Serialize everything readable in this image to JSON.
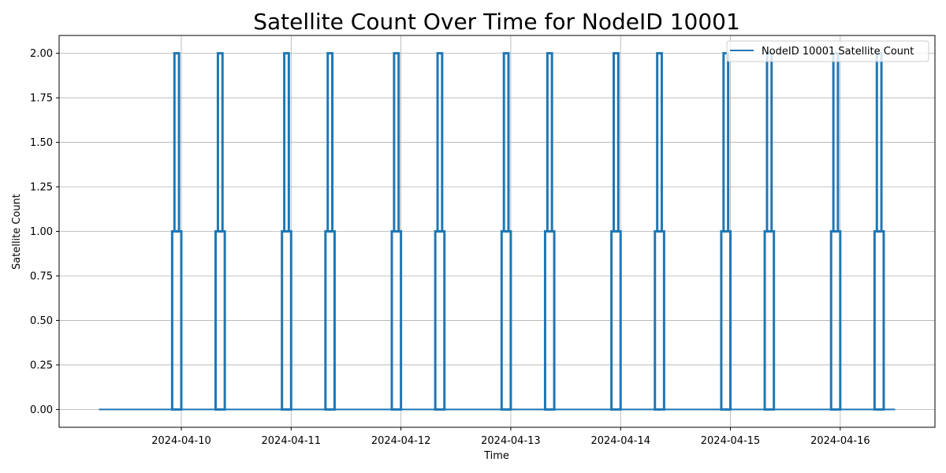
{
  "chart_data": {
    "type": "line",
    "title": "Satellite Count Over Time for NodeID 10001",
    "xlabel": "Time",
    "ylabel": "Satellite Count",
    "x_range": [
      "2024-04-09 06:00",
      "2024-04-16 12:00"
    ],
    "ylim": [
      -0.1,
      2.1
    ],
    "y_ticks": [
      "0.00",
      "0.25",
      "0.50",
      "0.75",
      "1.00",
      "1.25",
      "1.50",
      "1.75",
      "2.00"
    ],
    "x_ticks": [
      "2024-04-10",
      "2024-04-11",
      "2024-04-12",
      "2024-04-13",
      "2024-04-14",
      "2024-04-15",
      "2024-04-16"
    ],
    "grid": true,
    "legend_position": "top-right",
    "series": [
      {
        "name": "NodeID 10001 Satellite Count",
        "color": "#1f77b4",
        "step_start": "2024-04-09 06:00",
        "step_end": "2024-04-16 12:00",
        "baseline_value": 0,
        "passes": [
          [
            "2024-04-09 22:00",
            "2024-04-09 22:30",
            "2024-04-09 23:30",
            "2024-04-10 00:00"
          ],
          [
            "2024-04-10 07:30",
            "2024-04-10 08:00",
            "2024-04-10 09:00",
            "2024-04-10 09:30"
          ],
          [
            "2024-04-10 22:00",
            "2024-04-10 22:30",
            "2024-04-10 23:30",
            "2024-04-11 00:00"
          ],
          [
            "2024-04-11 07:30",
            "2024-04-11 08:00",
            "2024-04-11 09:00",
            "2024-04-11 09:30"
          ],
          [
            "2024-04-11 22:00",
            "2024-04-11 22:30",
            "2024-04-11 23:30",
            "2024-04-12 00:00"
          ],
          [
            "2024-04-12 07:30",
            "2024-04-12 08:00",
            "2024-04-12 09:00",
            "2024-04-12 09:30"
          ],
          [
            "2024-04-12 22:00",
            "2024-04-12 22:30",
            "2024-04-12 23:30",
            "2024-04-13 00:00"
          ],
          [
            "2024-04-13 07:30",
            "2024-04-13 08:00",
            "2024-04-13 09:00",
            "2024-04-13 09:30"
          ],
          [
            "2024-04-13 22:00",
            "2024-04-13 22:30",
            "2024-04-13 23:30",
            "2024-04-14 00:00"
          ],
          [
            "2024-04-14 07:30",
            "2024-04-14 08:00",
            "2024-04-14 09:00",
            "2024-04-14 09:30"
          ],
          [
            "2024-04-14 22:00",
            "2024-04-14 22:30",
            "2024-04-14 23:30",
            "2024-04-15 00:00"
          ],
          [
            "2024-04-15 07:30",
            "2024-04-15 08:00",
            "2024-04-15 09:00",
            "2024-04-15 09:30"
          ],
          [
            "2024-04-15 22:00",
            "2024-04-15 22:30",
            "2024-04-15 23:30",
            "2024-04-16 00:00"
          ],
          [
            "2024-04-16 07:30",
            "2024-04-16 08:00",
            "2024-04-16 09:00",
            "2024-04-16 09:30"
          ]
        ]
      }
    ]
  }
}
